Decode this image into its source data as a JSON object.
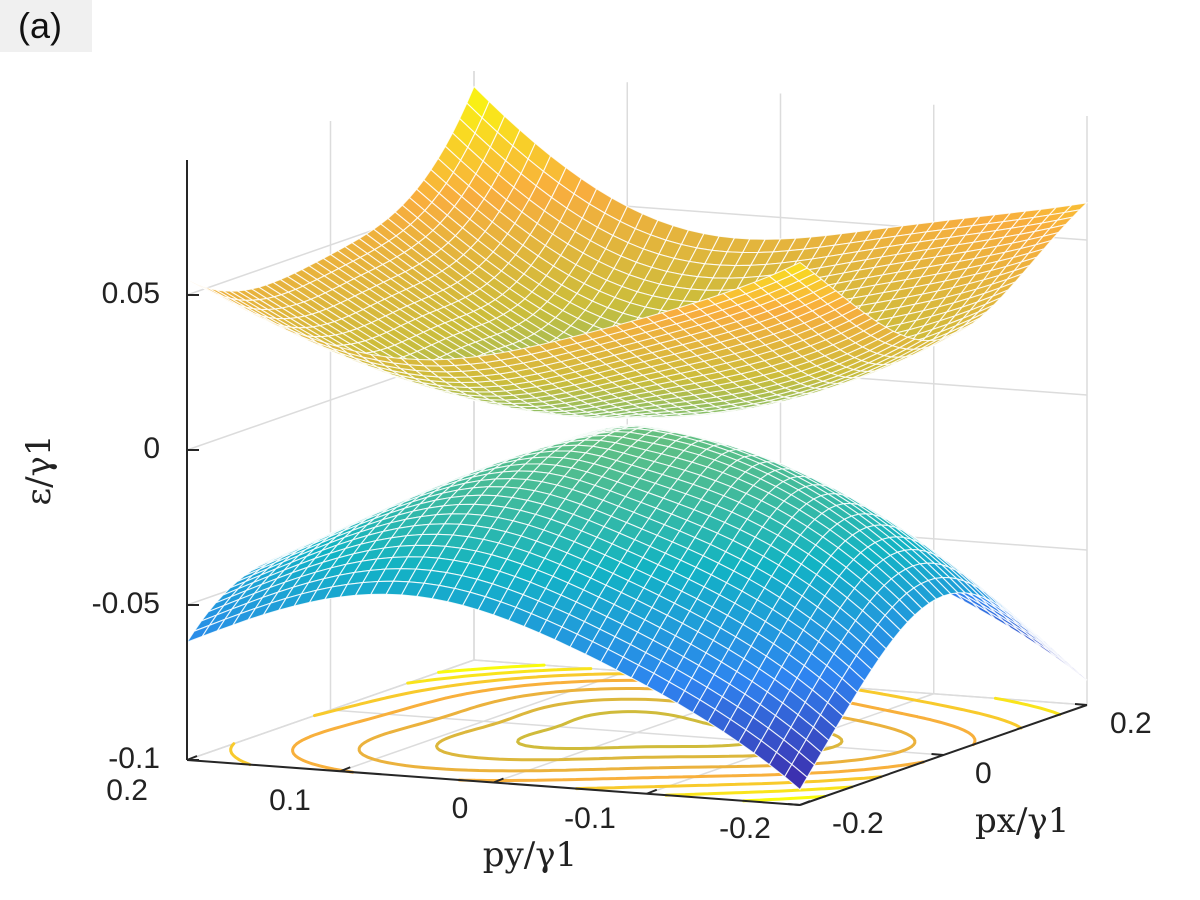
{
  "panel_label": "(a)",
  "chart_data": {
    "type": "surface",
    "title": "",
    "zlabel": "ε/γ1",
    "ylabel": "py/γ1",
    "xlabel": "px/γ1",
    "zlim": [
      -0.1,
      0.09
    ],
    "px_range": [
      -0.2,
      0.2
    ],
    "py_range": [
      -0.2,
      0.2
    ],
    "z_ticks": [
      "0.05",
      "0",
      "-0.05",
      "-0.1"
    ],
    "py_ticks": [
      "0.2",
      "0.1",
      "0",
      "-0.1",
      "-0.2"
    ],
    "px_ticks": [
      "0.2",
      "0",
      "-0.2"
    ],
    "surfaces": [
      {
        "band": "conduction",
        "corner_values": {
          "py=0.2,px=-0.2": 0.055,
          "py=-0.2,px=-0.2": 0.075,
          "py=-0.2,px=0.2": 0.062,
          "py=0.2,px=0.2": 0.085
        },
        "min_near_origin": 0.002
      },
      {
        "band": "valence",
        "corner_values": {
          "py=0.2,px=-0.2": -0.062,
          "py=-0.2,px=-0.2": -0.095,
          "py=-0.2,px=0.2": -0.092,
          "py=0.2,px=0.2": -0.07
        },
        "max_near_origin": -0.002
      }
    ],
    "contour_plane": "floor at ε/γ1 = -0.1",
    "colormap": "parula",
    "colors": [
      "#3e26a8",
      "#2e84f0",
      "#12b3c4",
      "#5cbf85",
      "#ccbd3b",
      "#f8ad3e",
      "#f9fb0e"
    ],
    "grid": true
  }
}
